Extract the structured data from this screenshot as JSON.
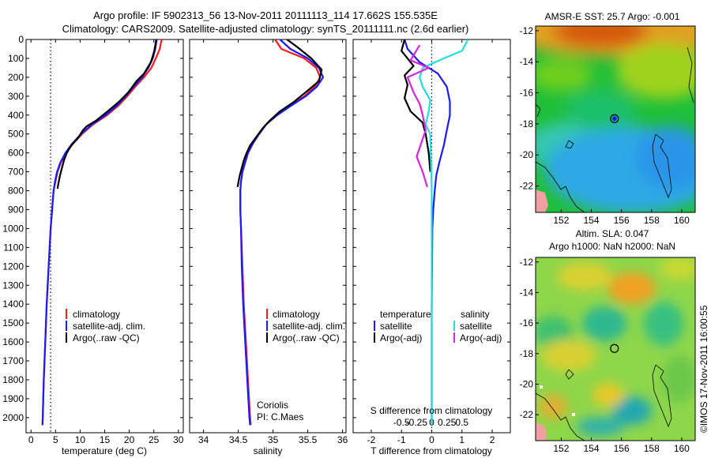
{
  "header": {
    "title_line1": "Argo profile: IF 5902313_56 13-Nov-2011 20111113_114 17.662S 155.535E",
    "title_line2": "Climatology: CARS2009. Satellite-adjusted climatology: synTS_20111111.nc (2.6d earlier)"
  },
  "side_stamp": "©IMOS 17-Nov-2011 16:00:55",
  "colors": {
    "clim": "#ff1a1a",
    "sat": "#1a1aff",
    "argo": "#000000",
    "sal_sat": "#22dddd",
    "sal_argo": "#dd22dd"
  },
  "chart_data": [
    {
      "type": "line",
      "name": "temperature",
      "xlabel": "temperature (deg C)",
      "ylabel": "",
      "xlim": [
        -1,
        31
      ],
      "ylim": [
        2080,
        0
      ],
      "xticks": [
        0,
        5,
        10,
        15,
        20,
        25,
        30
      ],
      "yticks": [
        0,
        100,
        200,
        300,
        400,
        500,
        600,
        700,
        800,
        900,
        1000,
        1100,
        1200,
        1300,
        1400,
        1500,
        1600,
        1700,
        1800,
        1900,
        2000
      ],
      "legend": [
        "climatology",
        "satellite-adj. clim.",
        "Argo(..raw -QC)"
      ],
      "dotted_x": 4.0,
      "series": [
        {
          "name": "climatology",
          "color": "#ff1a1a",
          "points": [
            [
              26.6,
              0
            ],
            [
              26.2,
              50
            ],
            [
              25.4,
              100
            ],
            [
              24.5,
              150
            ],
            [
              23.0,
              200
            ],
            [
              21.2,
              250
            ],
            [
              19.6,
              300
            ],
            [
              17.8,
              350
            ],
            [
              15.5,
              400
            ],
            [
              12.6,
              450
            ],
            [
              10.4,
              500
            ],
            [
              8.6,
              550
            ],
            [
              7.1,
              600
            ],
            [
              6.1,
              650
            ],
            [
              5.4,
              700
            ],
            [
              5.0,
              750
            ],
            [
              4.6,
              800
            ],
            [
              4.3,
              900
            ],
            [
              4.0,
              1000
            ],
            [
              3.6,
              1200
            ],
            [
              3.2,
              1400
            ],
            [
              2.9,
              1600
            ],
            [
              2.6,
              1800
            ],
            [
              2.4,
              2000
            ],
            [
              2.35,
              2040
            ]
          ]
        },
        {
          "name": "satellite-adj. clim.",
          "color": "#1a1aff",
          "points": [
            [
              25.6,
              0
            ],
            [
              25.3,
              50
            ],
            [
              24.8,
              100
            ],
            [
              23.9,
              150
            ],
            [
              22.6,
              200
            ],
            [
              20.9,
              250
            ],
            [
              19.3,
              300
            ],
            [
              17.5,
              350
            ],
            [
              15.2,
              400
            ],
            [
              12.4,
              450
            ],
            [
              10.2,
              500
            ],
            [
              8.4,
              550
            ],
            [
              7.0,
              600
            ],
            [
              6.0,
              650
            ],
            [
              5.3,
              700
            ],
            [
              4.9,
              750
            ],
            [
              4.6,
              800
            ],
            [
              4.3,
              900
            ],
            [
              4.0,
              1000
            ],
            [
              3.6,
              1200
            ],
            [
              3.2,
              1400
            ],
            [
              2.9,
              1600
            ],
            [
              2.6,
              1800
            ],
            [
              2.4,
              2000
            ],
            [
              2.35,
              2040
            ]
          ]
        },
        {
          "name": "Argo(..raw -QC)",
          "color": "#000000",
          "points": [
            [
              25.5,
              0
            ],
            [
              25.1,
              60
            ],
            [
              24.4,
              120
            ],
            [
              23.0,
              180
            ],
            [
              21.5,
              220
            ],
            [
              19.8,
              280
            ],
            [
              17.9,
              330
            ],
            [
              15.6,
              380
            ],
            [
              13.2,
              430
            ],
            [
              11.3,
              460
            ],
            [
              10.6,
              480
            ],
            [
              9.6,
              520
            ],
            [
              8.2,
              560
            ],
            [
              7.3,
              600
            ],
            [
              6.7,
              640
            ],
            [
              6.3,
              680
            ],
            [
              5.9,
              720
            ],
            [
              5.6,
              760
            ],
            [
              5.4,
              790
            ]
          ]
        }
      ]
    },
    {
      "type": "line",
      "name": "salinity",
      "xlabel": "salinity",
      "ylabel": "",
      "xlim": [
        33.8,
        36.05
      ],
      "ylim": [
        2080,
        0
      ],
      "xticks": [
        34,
        34.5,
        35,
        35.5,
        36
      ],
      "legend": [
        "climatology",
        "satellite-adj. clim.",
        "Argo(..raw -QC)"
      ],
      "annotation": [
        "Coriolis",
        "PI: C.Maes"
      ],
      "series": [
        {
          "name": "climatology",
          "color": "#ff1a1a",
          "points": [
            [
              35.03,
              0
            ],
            [
              35.12,
              50
            ],
            [
              35.45,
              100
            ],
            [
              35.62,
              150
            ],
            [
              35.68,
              200
            ],
            [
              35.6,
              250
            ],
            [
              35.45,
              300
            ],
            [
              35.25,
              350
            ],
            [
              35.05,
              400
            ],
            [
              34.9,
              450
            ],
            [
              34.8,
              500
            ],
            [
              34.71,
              550
            ],
            [
              34.64,
              600
            ],
            [
              34.6,
              650
            ],
            [
              34.56,
              700
            ],
            [
              34.54,
              750
            ],
            [
              34.53,
              800
            ],
            [
              34.53,
              900
            ],
            [
              34.54,
              1000
            ],
            [
              34.56,
              1200
            ],
            [
              34.58,
              1400
            ],
            [
              34.61,
              1600
            ],
            [
              34.64,
              1800
            ],
            [
              34.67,
              2000
            ],
            [
              34.68,
              2040
            ]
          ]
        },
        {
          "name": "satellite-adj. clim.",
          "color": "#1a1aff",
          "points": [
            [
              35.1,
              0
            ],
            [
              35.25,
              50
            ],
            [
              35.5,
              100
            ],
            [
              35.66,
              150
            ],
            [
              35.72,
              200
            ],
            [
              35.63,
              250
            ],
            [
              35.47,
              300
            ],
            [
              35.26,
              350
            ],
            [
              35.06,
              400
            ],
            [
              34.9,
              450
            ],
            [
              34.8,
              500
            ],
            [
              34.71,
              550
            ],
            [
              34.64,
              600
            ],
            [
              34.6,
              650
            ],
            [
              34.56,
              700
            ],
            [
              34.54,
              750
            ],
            [
              34.53,
              800
            ],
            [
              34.53,
              900
            ],
            [
              34.54,
              1000
            ],
            [
              34.55,
              1200
            ],
            [
              34.57,
              1400
            ],
            [
              34.6,
              1600
            ],
            [
              34.63,
              1800
            ],
            [
              34.66,
              2000
            ],
            [
              34.67,
              2040
            ]
          ]
        },
        {
          "name": "Argo(..raw -QC)",
          "color": "#000000",
          "points": [
            [
              35.2,
              0
            ],
            [
              35.35,
              40
            ],
            [
              35.55,
              100
            ],
            [
              35.7,
              160
            ],
            [
              35.66,
              220
            ],
            [
              35.5,
              270
            ],
            [
              35.3,
              330
            ],
            [
              35.1,
              380
            ],
            [
              34.95,
              430
            ],
            [
              34.85,
              470
            ],
            [
              34.75,
              520
            ],
            [
              34.67,
              560
            ],
            [
              34.62,
              600
            ],
            [
              34.58,
              640
            ],
            [
              34.55,
              680
            ],
            [
              34.52,
              720
            ],
            [
              34.5,
              760
            ],
            [
              34.49,
              780
            ]
          ]
        }
      ]
    },
    {
      "type": "line",
      "name": "difference",
      "xlabel": "T difference from climatology",
      "xlabel_top": "S difference from climatology",
      "xlim": [
        -2.6,
        2.6
      ],
      "ylim": [
        2080,
        0
      ],
      "xticks": [
        -2,
        -1,
        0,
        1,
        2
      ],
      "xticks_labels": [
        "-2",
        "-1",
        "0",
        "1",
        "2"
      ],
      "s_ticks": [
        -1,
        -0.5,
        0,
        0.5,
        1
      ],
      "s_ticks_labels": [
        "-0.5",
        "-0.25",
        "0",
        "0.25",
        "0.5"
      ],
      "legend_temperature": {
        "title": "temperature",
        "items": [
          "satellite",
          "Argo(-adj)"
        ]
      },
      "legend_salinity": {
        "title": "salinity",
        "items": [
          "satellite",
          "Argo(-adj)"
        ]
      },
      "series": [
        {
          "name": "T satellite",
          "color": "#1a1aff",
          "points": [
            [
              -0.9,
              0
            ],
            [
              -0.8,
              50
            ],
            [
              -0.4,
              120
            ],
            [
              0.2,
              180
            ],
            [
              0.5,
              250
            ],
            [
              0.6,
              330
            ],
            [
              0.6,
              400
            ],
            [
              0.5,
              480
            ],
            [
              0.4,
              560
            ],
            [
              0.25,
              650
            ],
            [
              0.15,
              720
            ],
            [
              0.1,
              800
            ],
            [
              0.05,
              900
            ],
            [
              0.02,
              1000
            ],
            [
              0.01,
              1200
            ],
            [
              0,
              1400
            ],
            [
              0,
              2040
            ]
          ]
        },
        {
          "name": "T Argo(-adj)",
          "color": "#000000",
          "points": [
            [
              -0.9,
              0
            ],
            [
              -1.0,
              60
            ],
            [
              -0.6,
              140
            ],
            [
              -0.9,
              190
            ],
            [
              -0.8,
              240
            ],
            [
              -0.9,
              310
            ],
            [
              -0.7,
              380
            ],
            [
              -0.3,
              440
            ],
            [
              -0.2,
              500
            ],
            [
              -0.1,
              600
            ],
            [
              -0.05,
              700
            ]
          ]
        },
        {
          "name": "S satellite",
          "color": "#22dddd",
          "points": [
            [
              1.2,
              0
            ],
            [
              1.0,
              60
            ],
            [
              0.4,
              100
            ],
            [
              -0.3,
              150
            ],
            [
              -0.4,
              200
            ],
            [
              -0.3,
              250
            ],
            [
              -0.05,
              320
            ],
            [
              -0.1,
              380
            ],
            [
              -0.2,
              450
            ],
            [
              -0.05,
              500
            ],
            [
              0,
              800
            ],
            [
              0,
              2040
            ]
          ]
        },
        {
          "name": "S Argo(-adj)",
          "color": "#dd22dd",
          "points": [
            [
              -0.4,
              30
            ],
            [
              -0.7,
              110
            ],
            [
              -0.1,
              150
            ],
            [
              -0.8,
              200
            ],
            [
              -0.6,
              280
            ],
            [
              -0.4,
              340
            ],
            [
              -0.3,
              400
            ],
            [
              -0.2,
              480
            ],
            [
              -0.5,
              620
            ],
            [
              -0.3,
              700
            ],
            [
              -0.15,
              780
            ]
          ]
        }
      ]
    },
    {
      "type": "heatmap",
      "name": "sst-map",
      "title": "AMSR-E SST: 25.7 Argo: -0.001",
      "xlim": [
        150.3,
        160.9
      ],
      "ylim": [
        -23.7,
        -11.7
      ],
      "xticks": [
        152,
        154,
        156,
        158,
        160
      ],
      "yticks": [
        -12,
        -14,
        -16,
        -18,
        -20,
        -22
      ],
      "xtick_labels": [
        "152",
        "154",
        "156",
        "158",
        "160"
      ],
      "ytick_labels": [
        "-12",
        "-14",
        "-16",
        "-18",
        "-20",
        "-22"
      ],
      "marker": [
        155.535,
        -17.662
      ]
    },
    {
      "type": "heatmap",
      "name": "sla-map",
      "title": "Altim. SLA: 0.047",
      "subtitle": "Argo h1000: NaN h2000: NaN",
      "xlim": [
        150.3,
        160.9
      ],
      "ylim": [
        -23.7,
        -11.7
      ],
      "xticks": [
        152,
        154,
        156,
        158,
        160
      ],
      "yticks": [
        -12,
        -14,
        -16,
        -18,
        -20,
        -22
      ],
      "xtick_labels": [
        "152",
        "154",
        "156",
        "158",
        "160"
      ],
      "ytick_labels": [
        "-12",
        "-14",
        "-16",
        "-18",
        "-20",
        "-22"
      ],
      "marker": [
        155.535,
        -17.662
      ]
    }
  ]
}
